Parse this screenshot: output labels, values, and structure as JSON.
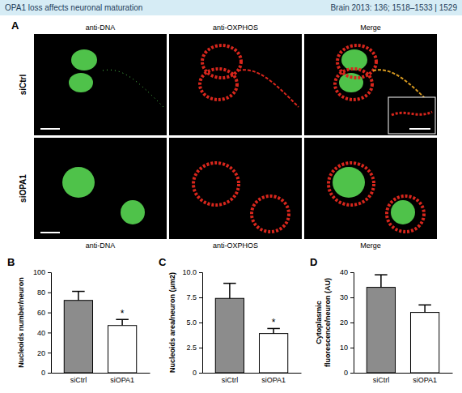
{
  "header": {
    "left": "OPA1 loss affects neuronal maturation",
    "right": "Brain 2013: 136; 1518–1533 | 1529"
  },
  "panel_a": {
    "panel_label": "A",
    "rows": [
      "siCtrl",
      "siOPA1"
    ],
    "columns": [
      "anti-DNA",
      "anti-OXPHOS",
      "Merge"
    ]
  },
  "chart_data": [
    {
      "type": "bar",
      "panel_label": "B",
      "y_label": "Nucleoids number/neuron",
      "categories": [
        "siCtrl",
        "siOPA1"
      ],
      "values": [
        72,
        47
      ],
      "errors": [
        9,
        6
      ],
      "colors": [
        "#8c8c8c",
        "#ffffff"
      ],
      "ylim": [
        0,
        100
      ],
      "yticks": [
        0,
        20,
        40,
        60,
        80,
        100
      ],
      "annotations": [
        {
          "category": "siOPA1",
          "text": "*"
        }
      ]
    },
    {
      "type": "bar",
      "panel_label": "C",
      "y_label": "Nucleoids area/neuron (μm2)",
      "categories": [
        "siCtrl",
        "siOPA1"
      ],
      "values": [
        7.4,
        3.9
      ],
      "errors": [
        1.5,
        0.5
      ],
      "colors": [
        "#8c8c8c",
        "#ffffff"
      ],
      "ylim": [
        0,
        10
      ],
      "yticks": [
        0,
        2.5,
        {
          "value": 5,
          "label": "5.0"
        },
        7.5,
        {
          "value": 10,
          "label": "10.0"
        }
      ],
      "annotations": [
        {
          "category": "siOPA1",
          "text": "*"
        }
      ]
    },
    {
      "type": "bar",
      "panel_label": "D",
      "y_label": "Cytoplasmic fluorescence/neuron (AU)",
      "categories": [
        "siCtrl",
        "siOPA1"
      ],
      "values": [
        34,
        24
      ],
      "errors": [
        5,
        3
      ],
      "colors": [
        "#8c8c8c",
        "#ffffff"
      ],
      "ylim": [
        0,
        40
      ],
      "yticks": [
        0,
        10,
        20,
        30,
        40
      ]
    }
  ]
}
